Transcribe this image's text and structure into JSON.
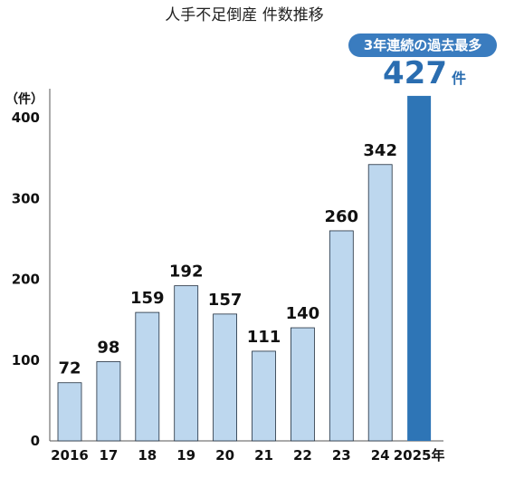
{
  "chart_data": {
    "type": "bar",
    "title": "人手不足倒産 件数推移",
    "ylabel": "（件）",
    "ylim": [
      0,
      400
    ],
    "yticks": [
      0,
      100,
      200,
      300,
      400
    ],
    "grid": false,
    "categories": [
      "2016",
      "17",
      "18",
      "19",
      "20",
      "21",
      "22",
      "23",
      "24",
      "2025年"
    ],
    "values": [
      72,
      98,
      159,
      192,
      157,
      111,
      140,
      260,
      342,
      427
    ],
    "highlight_index": 9,
    "annotation": {
      "badge": "3年連続の過去最多",
      "value": "427",
      "unit": "件"
    }
  },
  "colors": {
    "bar": "#bdd7ee",
    "bar_stroke": "#1f2d3d",
    "highlight": "#2e75b6",
    "badge": "#3a7cbf",
    "axis": "#555555"
  }
}
